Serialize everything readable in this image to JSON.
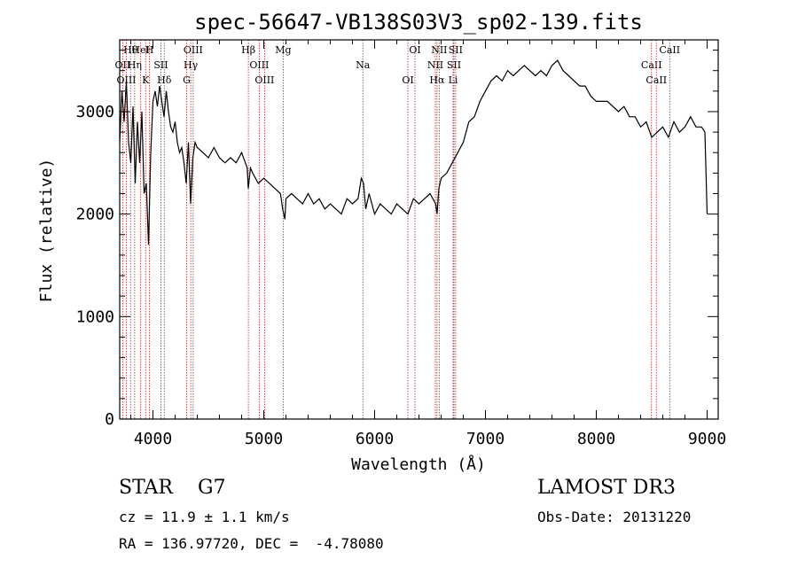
{
  "chart_data": {
    "type": "line",
    "title": "spec-56647-VB138S03V3_sp02-139.fits",
    "xlabel": "Wavelength (Å)",
    "ylabel": "Flux (relative)",
    "xlim": [
      3700,
      9100
    ],
    "ylim": [
      0,
      3700
    ],
    "xticks": [
      4000,
      5000,
      6000,
      7000,
      8000,
      9000
    ],
    "yticks": [
      0,
      1000,
      2000,
      3000
    ],
    "grid": false,
    "line_color": "#000000",
    "marker_color": "#b22222",
    "series": [
      {
        "x": [
          3700,
          3720,
          3740,
          3760,
          3780,
          3800,
          3820,
          3840,
          3860,
          3880,
          3900,
          3920,
          3940,
          3960,
          3980,
          4000,
          4020,
          4040,
          4060,
          4080,
          4100,
          4120,
          4140,
          4160,
          4180,
          4200,
          4220,
          4240,
          4260,
          4280,
          4300,
          4320,
          4340,
          4360,
          4380,
          4400,
          4450,
          4500,
          4550,
          4600,
          4650,
          4700,
          4750,
          4800,
          4850,
          4860,
          4880,
          4900,
          4950,
          5000,
          5050,
          5100,
          5150,
          5170,
          5190,
          5200,
          5250,
          5300,
          5350,
          5400,
          5450,
          5500,
          5550,
          5600,
          5650,
          5700,
          5750,
          5800,
          5850,
          5880,
          5900,
          5920,
          5950,
          6000,
          6050,
          6100,
          6150,
          6200,
          6250,
          6300,
          6350,
          6400,
          6450,
          6500,
          6550,
          6563,
          6580,
          6600,
          6650,
          6700,
          6750,
          6800,
          6850,
          6900,
          6950,
          7000,
          7050,
          7100,
          7150,
          7200,
          7250,
          7300,
          7350,
          7400,
          7450,
          7500,
          7550,
          7600,
          7650,
          7700,
          7750,
          7800,
          7850,
          7900,
          7950,
          8000,
          8050,
          8100,
          8150,
          8200,
          8250,
          8300,
          8350,
          8400,
          8450,
          8500,
          8550,
          8600,
          8650,
          8700,
          8750,
          8800,
          8850,
          8900,
          8950,
          8980,
          9000
        ],
        "y": [
          2700,
          3200,
          2900,
          3300,
          2700,
          2500,
          3050,
          2300,
          2900,
          2500,
          3000,
          2200,
          2300,
          1700,
          2600,
          3100,
          3200,
          3050,
          3250,
          3100,
          2950,
          3200,
          3000,
          2850,
          2800,
          2900,
          2700,
          2600,
          2650,
          2500,
          2300,
          2700,
          2100,
          2550,
          2700,
          2650,
          2600,
          2550,
          2650,
          2550,
          2500,
          2550,
          2500,
          2600,
          2450,
          2250,
          2450,
          2400,
          2300,
          2350,
          2300,
          2250,
          2200,
          2050,
          1950,
          2150,
          2200,
          2150,
          2100,
          2200,
          2100,
          2150,
          2050,
          2100,
          2050,
          2000,
          2150,
          2100,
          2150,
          2350,
          2300,
          2050,
          2200,
          2000,
          2100,
          2050,
          2000,
          2100,
          2050,
          2000,
          2150,
          2100,
          2150,
          2200,
          2100,
          2000,
          2250,
          2350,
          2400,
          2500,
          2600,
          2700,
          2900,
          2950,
          3100,
          3200,
          3300,
          3350,
          3300,
          3400,
          3350,
          3400,
          3450,
          3400,
          3350,
          3400,
          3350,
          3450,
          3500,
          3400,
          3350,
          3300,
          3250,
          3250,
          3150,
          3100,
          3100,
          3100,
          3050,
          3000,
          3050,
          2950,
          2950,
          2850,
          2900,
          2750,
          2800,
          2850,
          2750,
          2900,
          2800,
          2850,
          2950,
          2850,
          2850,
          2800,
          2000
        ]
      }
    ],
    "lines": [
      {
        "name": "Hθ",
        "x": 3798
      },
      {
        "name": "OII",
        "x": 3727
      },
      {
        "name": "OIII",
        "x": 3760
      },
      {
        "name": "HeI",
        "x": 3889
      },
      {
        "name": "Hη",
        "x": 3835
      },
      {
        "name": "K",
        "x": 3934
      },
      {
        "name": "H",
        "x": 3968
      },
      {
        "name": "SII",
        "x": 4072
      },
      {
        "name": "Hδ",
        "x": 4102
      },
      {
        "name": "OIII",
        "x": 4363
      },
      {
        "name": "Hγ",
        "x": 4341
      },
      {
        "name": "G",
        "x": 4304
      },
      {
        "name": "Hβ",
        "x": 4861
      },
      {
        "name": "OIII",
        "x": 4959
      },
      {
        "name": "OIII",
        "x": 5007
      },
      {
        "name": "Mg",
        "x": 5175
      },
      {
        "name": "Na",
        "x": 5894
      },
      {
        "name": "OI",
        "x": 6300
      },
      {
        "name": "OI",
        "x": 6364
      },
      {
        "name": "NII",
        "x": 6548
      },
      {
        "name": "Hα",
        "x": 6563
      },
      {
        "name": "NII",
        "x": 6583
      },
      {
        "name": "SII",
        "x": 6716
      },
      {
        "name": "Li",
        "x": 6708
      },
      {
        "name": "SII",
        "x": 6731
      },
      {
        "name": "CaII",
        "x": 8498
      },
      {
        "name": "CaII",
        "x": 8542
      },
      {
        "name": "CaII",
        "x": 8662
      }
    ]
  },
  "info": {
    "star_type": "STAR    G7",
    "cz": "cz = 11.9 ± 1.1 km/s",
    "radec": "RA = 136.97720, DEC =  -4.78080",
    "survey": "LAMOST DR3",
    "obs_date": "Obs-Date: 20131220"
  }
}
